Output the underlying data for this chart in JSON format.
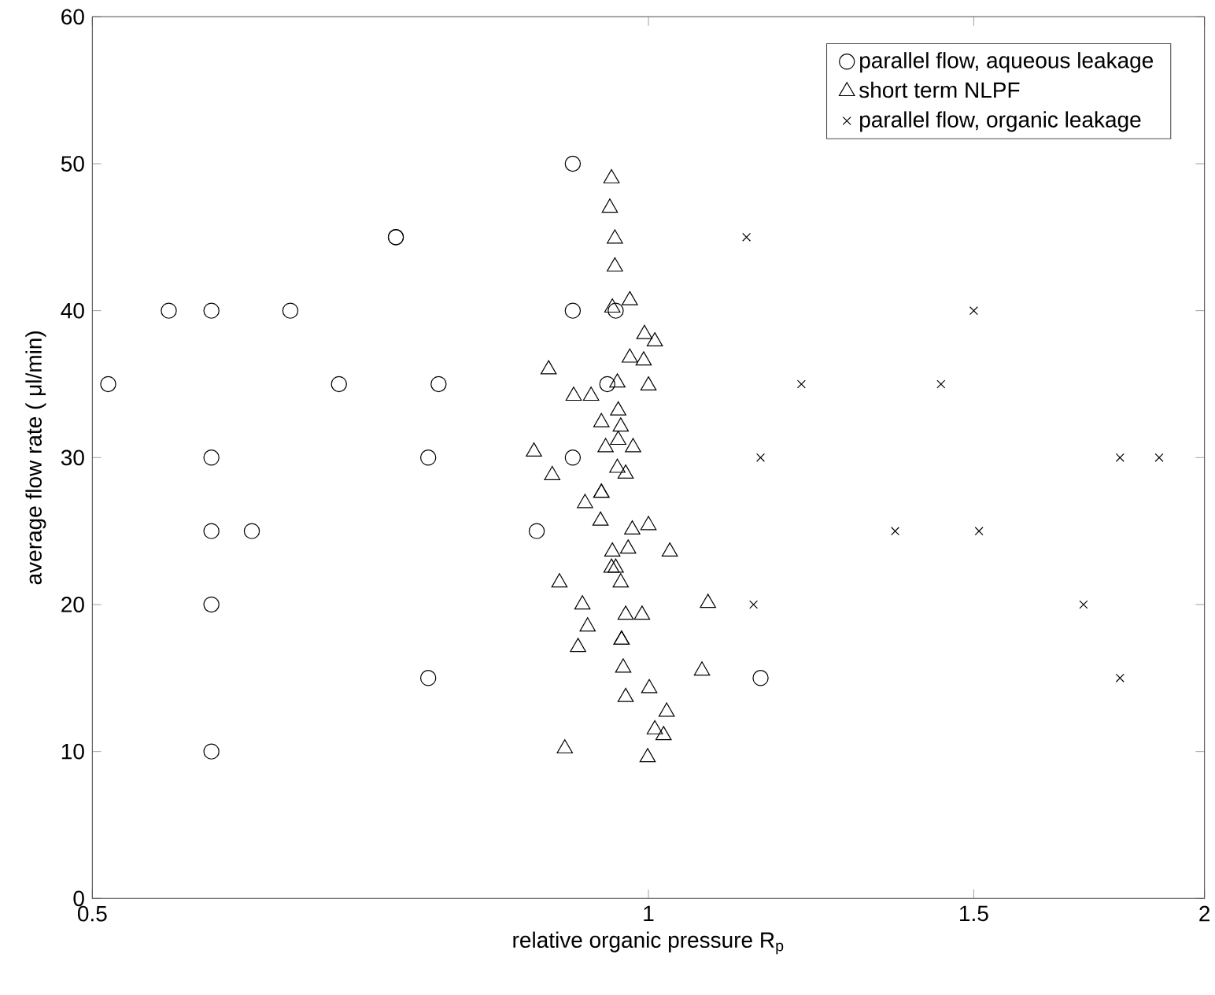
{
  "chart_data": {
    "type": "scatter",
    "xlabel": "relative organic pressure R$_{p}$",
    "ylabel": "average flow rate ( μl/min)",
    "log": "x",
    "xlim": [
      0.5,
      2
    ],
    "xticks": [
      0.5,
      1,
      1.5,
      2
    ],
    "ylim": [
      0,
      60
    ],
    "yticks": [
      0,
      10,
      20,
      30,
      40,
      50,
      60
    ],
    "legend": "top right",
    "series": [
      {
        "name": "parallel flow, aqueous leakage",
        "color": "#000000",
        "marker": "circle",
        "x": [
          0.91,
          0.73,
          0.73,
          0.55,
          0.58,
          0.64,
          0.91,
          0.96,
          0.51,
          0.68,
          0.77,
          0.95,
          0.58,
          0.76,
          0.91,
          0.58,
          0.61,
          0.87,
          0.58,
          0.76,
          0.58,
          1.15
        ],
        "values": [
          50,
          45,
          45,
          40,
          40,
          40,
          40,
          40,
          35,
          35,
          35,
          35,
          30,
          30,
          30,
          25,
          25,
          25,
          20,
          15,
          10,
          15
        ]
      },
      {
        "name": "short term NLPF",
        "color": "#000000",
        "marker": "triangle",
        "x": [
          0.955,
          0.953,
          0.959,
          0.959,
          0.977,
          0.956,
          0.995,
          1.008,
          0.977,
          0.994,
          0.883,
          0.962,
          1.0,
          0.911,
          0.931,
          0.963,
          0.943,
          0.966,
          0.963,
          0.948,
          0.981,
          0.867,
          0.887,
          0.962,
          0.972,
          0.943,
          0.943,
          0.924,
          0.942,
          0.98,
          1.0,
          1.027,
          0.975,
          0.956,
          0.955,
          0.96,
          0.966,
          0.895,
          1.077,
          0.921,
          0.972,
          0.992,
          0.927,
          0.916,
          0.967,
          0.967,
          0.969,
          1.069,
          1.001,
          0.972,
          1.023,
          1.008,
          1.019,
          0.901,
          0.999
        ],
        "values": [
          49,
          47,
          44.9,
          43,
          40.7,
          40.2,
          38.4,
          37.9,
          36.8,
          36.6,
          36,
          35.1,
          34.9,
          34.2,
          34.2,
          33.2,
          32.4,
          32.1,
          31.2,
          30.7,
          30.7,
          30.4,
          28.8,
          29.3,
          28.9,
          27.6,
          27.6,
          26.9,
          25.7,
          25.1,
          25.4,
          23.6,
          23.8,
          23.6,
          22.5,
          22.5,
          21.5,
          21.5,
          20.1,
          20,
          19.3,
          19.3,
          18.5,
          17.1,
          17.6,
          17.6,
          15.7,
          15.5,
          14.3,
          13.7,
          12.7,
          11.5,
          11.1,
          10.2,
          9.6
        ]
      },
      {
        "name": "parallel flow,  organic leakage",
        "color": "#000000",
        "marker": "cross",
        "x": [
          1.13,
          1.5,
          1.21,
          1.44,
          1.15,
          1.8,
          1.89,
          1.36,
          1.51,
          1.14,
          1.72,
          1.8
        ],
        "values": [
          45,
          40,
          35,
          35,
          30,
          30,
          30,
          25,
          25,
          20,
          20,
          15
        ]
      }
    ]
  }
}
